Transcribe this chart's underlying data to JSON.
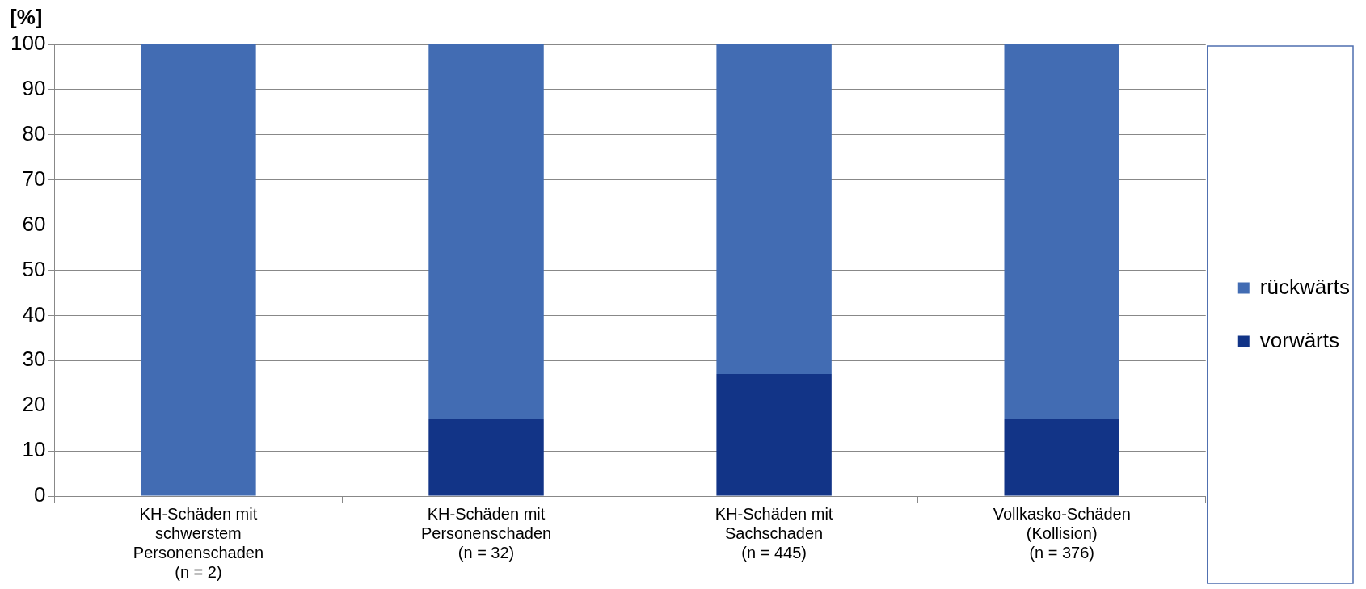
{
  "chart_data": {
    "type": "bar",
    "stacked": true,
    "ylabel": "[%]",
    "categories": [
      "KH-Schäden mit\nschwerstem\nPersonenschaden\n(n = 2)",
      "KH-Schäden mit\nPersonenschaden\n(n = 32)",
      "KH-Schäden mit\nSachschaden\n(n = 445)",
      "Vollkasko-Schäden\n(Kollision)\n(n = 376)"
    ],
    "series": [
      {
        "name": "vorwärts",
        "color": "#123487",
        "values": [
          0,
          17,
          27,
          17
        ]
      },
      {
        "name": "rückwärts",
        "color": "#426cb3",
        "values": [
          100,
          83,
          73,
          83
        ]
      }
    ],
    "ylim": [
      0,
      100
    ],
    "yticks": [
      0,
      10,
      20,
      30,
      40,
      50,
      60,
      70,
      80,
      90,
      100
    ],
    "grid": "y",
    "legend": "right"
  }
}
